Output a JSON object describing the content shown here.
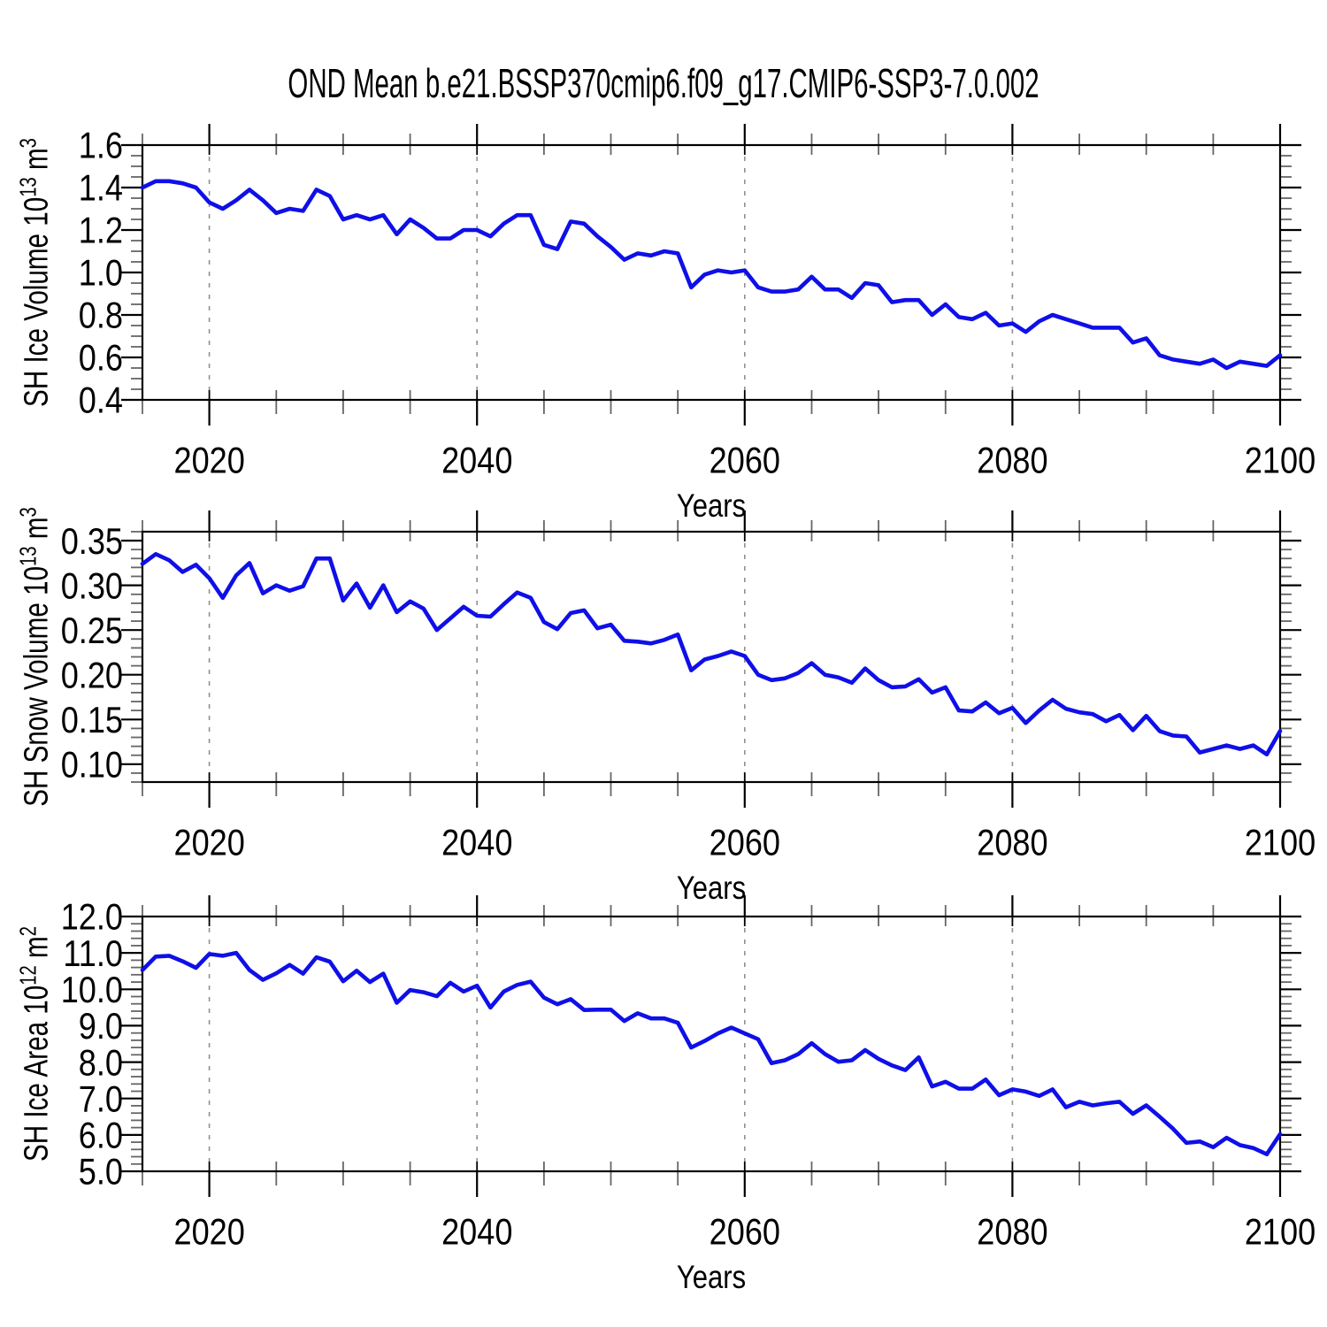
{
  "title": "OND Mean b.e21.BSSP370cmip6.f09_g17.CMIP6-SSP3-7.0.002",
  "colors": {
    "background": "#ffffff",
    "line": "#0f0fe8",
    "axis": "#000000",
    "minor_tick": "#666666",
    "gridline": "#909090"
  },
  "chart_data": [
    {
      "id": "ice-volume",
      "type": "line",
      "panel_title": "",
      "ylabel": "SH Ice Volume 10~13~ m~3~",
      "xlabel": "Years",
      "xlim": [
        2015,
        2100
      ],
      "x_start": 2015,
      "x_step": 1,
      "x_tick_values": [
        2020,
        2040,
        2060,
        2080,
        2100
      ],
      "x_tick_labels": [
        "2020",
        "2040",
        "2060",
        "2080",
        "2100"
      ],
      "x_minor_step": 5,
      "x_gridlines": [
        2020,
        2040,
        2060,
        2080
      ],
      "ylim": [
        0.4,
        1.6
      ],
      "y_tick_values": [
        0.4,
        0.6,
        0.8,
        1.0,
        1.2,
        1.4,
        1.6
      ],
      "y_tick_labels": [
        "0.4",
        "0.6",
        "0.8",
        "1.0",
        "1.2",
        "1.4",
        "1.6"
      ],
      "y_minor_step": 0.05,
      "grid": "x-dashed-only",
      "legend": "none",
      "values": [
        1.4,
        1.43,
        1.43,
        1.42,
        1.4,
        1.33,
        1.3,
        1.34,
        1.39,
        1.34,
        1.28,
        1.3,
        1.29,
        1.39,
        1.36,
        1.25,
        1.27,
        1.25,
        1.27,
        1.18,
        1.25,
        1.21,
        1.16,
        1.16,
        1.2,
        1.2,
        1.17,
        1.23,
        1.27,
        1.27,
        1.13,
        1.11,
        1.24,
        1.23,
        1.17,
        1.12,
        1.06,
        1.09,
        1.08,
        1.1,
        1.09,
        0.93,
        0.99,
        1.01,
        1.0,
        1.01,
        0.93,
        0.91,
        0.91,
        0.92,
        0.98,
        0.92,
        0.92,
        0.88,
        0.95,
        0.94,
        0.86,
        0.87,
        0.87,
        0.8,
        0.85,
        0.79,
        0.78,
        0.81,
        0.75,
        0.76,
        0.72,
        0.77,
        0.8,
        0.78,
        0.76,
        0.74,
        0.74,
        0.74,
        0.67,
        0.69,
        0.61,
        0.59,
        0.58,
        0.57,
        0.59,
        0.55,
        0.58,
        0.57,
        0.56,
        0.61
      ]
    },
    {
      "id": "snow-volume",
      "type": "line",
      "panel_title": "",
      "ylabel": "SH Snow Volume 10~13~ m~3~",
      "xlabel": "Years",
      "xlim": [
        2015,
        2100
      ],
      "x_start": 2015,
      "x_step": 1,
      "x_tick_values": [
        2020,
        2040,
        2060,
        2080,
        2100
      ],
      "x_tick_labels": [
        "2020",
        "2040",
        "2060",
        "2080",
        "2100"
      ],
      "x_minor_step": 5,
      "x_gridlines": [
        2020,
        2040,
        2060,
        2080
      ],
      "ylim": [
        0.08,
        0.36
      ],
      "y_tick_values": [
        0.1,
        0.15,
        0.2,
        0.25,
        0.3,
        0.35
      ],
      "y_tick_labels": [
        "0.10",
        "0.15",
        "0.20",
        "0.25",
        "0.30",
        "0.35"
      ],
      "y_minor_step": 0.01,
      "grid": "x-dashed-only",
      "legend": "none",
      "values": [
        0.324,
        0.335,
        0.328,
        0.315,
        0.323,
        0.308,
        0.286,
        0.311,
        0.325,
        0.291,
        0.3,
        0.294,
        0.299,
        0.33,
        0.33,
        0.283,
        0.302,
        0.275,
        0.3,
        0.27,
        0.282,
        0.274,
        0.25,
        0.263,
        0.276,
        0.266,
        0.265,
        0.279,
        0.292,
        0.286,
        0.259,
        0.251,
        0.269,
        0.272,
        0.252,
        0.256,
        0.238,
        0.237,
        0.235,
        0.239,
        0.245,
        0.205,
        0.217,
        0.221,
        0.226,
        0.221,
        0.2,
        0.194,
        0.196,
        0.202,
        0.213,
        0.2,
        0.197,
        0.191,
        0.207,
        0.194,
        0.186,
        0.187,
        0.195,
        0.18,
        0.186,
        0.16,
        0.159,
        0.169,
        0.157,
        0.163,
        0.146,
        0.16,
        0.172,
        0.162,
        0.158,
        0.156,
        0.148,
        0.155,
        0.138,
        0.154,
        0.137,
        0.132,
        0.131,
        0.113,
        0.117,
        0.121,
        0.117,
        0.121,
        0.111,
        0.137
      ]
    },
    {
      "id": "ice-area",
      "type": "line",
      "panel_title": "",
      "ylabel": "SH Ice Area 10~12~ m~2~",
      "xlabel": "Years",
      "xlim": [
        2015,
        2100
      ],
      "x_start": 2015,
      "x_step": 1,
      "x_tick_values": [
        2020,
        2040,
        2060,
        2080,
        2100
      ],
      "x_tick_labels": [
        "2020",
        "2040",
        "2060",
        "2080",
        "2100"
      ],
      "x_minor_step": 5,
      "x_gridlines": [
        2020,
        2040,
        2060,
        2080
      ],
      "ylim": [
        5.0,
        12.0
      ],
      "y_tick_values": [
        5.0,
        6.0,
        7.0,
        8.0,
        9.0,
        10.0,
        11.0,
        12.0
      ],
      "y_tick_labels": [
        "5.0",
        "6.0",
        "7.0",
        "8.0",
        "9.0",
        "10.0",
        "11.0",
        "12.0"
      ],
      "y_minor_step": 0.2,
      "grid": "x-dashed-only",
      "legend": "none",
      "values": [
        10.53,
        10.9,
        10.92,
        10.77,
        10.59,
        10.97,
        10.92,
        11.0,
        10.53,
        10.26,
        10.44,
        10.67,
        10.43,
        10.88,
        10.76,
        10.22,
        10.51,
        10.2,
        10.43,
        9.63,
        9.98,
        9.92,
        9.81,
        10.18,
        9.94,
        10.1,
        9.5,
        9.94,
        10.12,
        10.21,
        9.77,
        9.59,
        9.73,
        9.43,
        9.44,
        9.44,
        9.13,
        9.34,
        9.2,
        9.2,
        9.08,
        8.4,
        8.58,
        8.79,
        8.95,
        8.79,
        8.63,
        7.97,
        8.05,
        8.22,
        8.52,
        8.22,
        8.01,
        8.05,
        8.33,
        8.09,
        7.91,
        7.78,
        8.13,
        7.33,
        7.46,
        7.27,
        7.27,
        7.52,
        7.09,
        7.25,
        7.19,
        7.07,
        7.25,
        6.76,
        6.91,
        6.81,
        6.87,
        6.91,
        6.58,
        6.81,
        6.5,
        6.17,
        5.78,
        5.82,
        5.66,
        5.92,
        5.72,
        5.64,
        5.47,
        6.02
      ]
    }
  ]
}
